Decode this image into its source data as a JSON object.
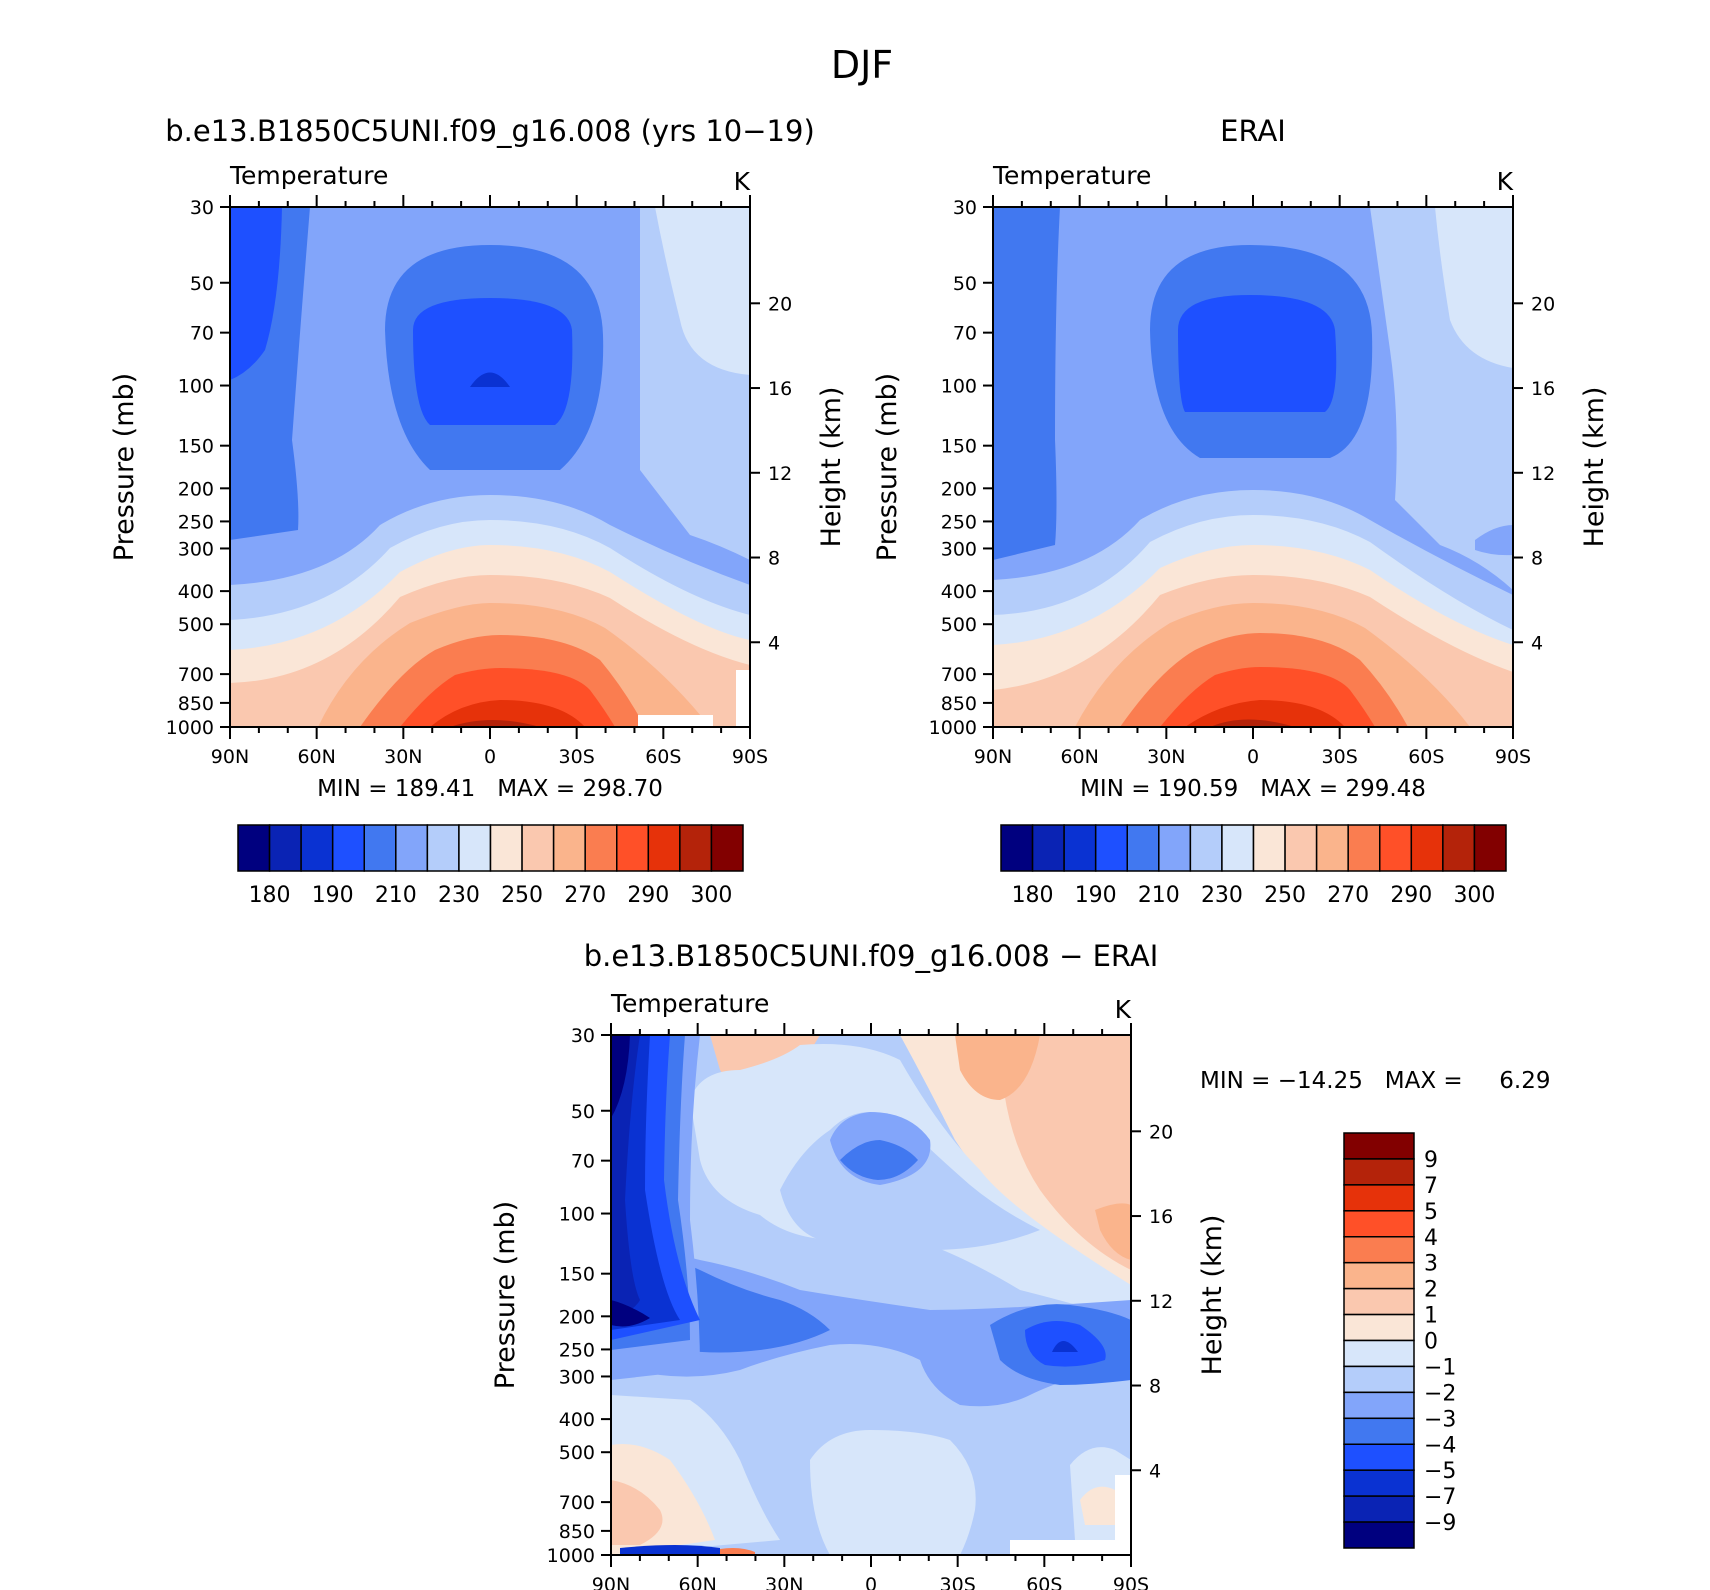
{
  "figure": {
    "title": "DJF"
  },
  "chart_data": [
    {
      "type": "contour",
      "title": "b.e13.B1850C5UNI.f09_g16.008 (yrs 10−19)",
      "left_label": "Temperature",
      "right_label": "K",
      "ylabel": "Pressure (mb)",
      "y2label": "Height (km)",
      "x_ticks": [
        "90N",
        "60N",
        "30N",
        "0",
        "30S",
        "60S",
        "90S"
      ],
      "y_ticks": [
        30,
        50,
        70,
        100,
        150,
        200,
        250,
        300,
        400,
        500,
        700,
        850,
        1000
      ],
      "y2_ticks": [
        20,
        16,
        12,
        8,
        4
      ],
      "y2_scale": "km",
      "y_scale": "log-pressure",
      "stats": "MIN = 189.41   MAX = 298.70",
      "colorbar": {
        "orientation": "horizontal",
        "colors": [
          "#00007f",
          "#0a23b4",
          "#0a32d2",
          "#1e50ff",
          "#4178f0",
          "#82a5fa",
          "#b4cdfa",
          "#d7e6fa",
          "#fae6d7",
          "#fac8af",
          "#fab48c",
          "#fa7d50",
          "#ff5028",
          "#e6320a",
          "#b4230a",
          "#820000"
        ],
        "labels": [
          "180",
          "190",
          "210",
          "230",
          "250",
          "270",
          "290",
          "300"
        ]
      }
    },
    {
      "type": "contour",
      "title": "ERAI",
      "left_label": "Temperature",
      "right_label": "K",
      "ylabel": "Pressure (mb)",
      "y2label": "Height (km)",
      "x_ticks": [
        "90N",
        "60N",
        "30N",
        "0",
        "30S",
        "60S",
        "90S"
      ],
      "y_ticks": [
        30,
        50,
        70,
        100,
        150,
        200,
        250,
        300,
        400,
        500,
        700,
        850,
        1000
      ],
      "y2_ticks": [
        20,
        16,
        12,
        8,
        4
      ],
      "y2_scale": "km",
      "y_scale": "log-pressure",
      "stats": "MIN = 190.59   MAX = 299.48",
      "colorbar": {
        "orientation": "horizontal",
        "colors": [
          "#00007f",
          "#0a23b4",
          "#0a32d2",
          "#1e50ff",
          "#4178f0",
          "#82a5fa",
          "#b4cdfa",
          "#d7e6fa",
          "#fae6d7",
          "#fac8af",
          "#fab48c",
          "#fa7d50",
          "#ff5028",
          "#e6320a",
          "#b4230a",
          "#820000"
        ],
        "labels": [
          "180",
          "190",
          "210",
          "230",
          "250",
          "270",
          "290",
          "300"
        ]
      }
    },
    {
      "type": "contour",
      "title": "b.e13.B1850C5UNI.f09_g16.008 − ERAI",
      "left_label": "Temperature",
      "right_label": "K",
      "ylabel": "Pressure (mb)",
      "y2label": "Height (km)",
      "x_ticks": [
        "90N",
        "60N",
        "30N",
        "0",
        "30S",
        "60S",
        "90S"
      ],
      "y_ticks": [
        30,
        50,
        70,
        100,
        150,
        200,
        250,
        300,
        400,
        500,
        700,
        850,
        1000
      ],
      "y2_ticks": [
        20,
        16,
        12,
        8,
        4
      ],
      "y2_scale": "km",
      "y_scale": "log-pressure",
      "stats": "MIN = −14.25   MAX =     6.29",
      "colorbar": {
        "orientation": "vertical",
        "colors": [
          "#820000",
          "#b4230a",
          "#e6320a",
          "#ff5028",
          "#fa7d50",
          "#fab48c",
          "#fac8af",
          "#fae6d7",
          "#d7e6fa",
          "#b4cdfa",
          "#82a5fa",
          "#4178f0",
          "#1e50ff",
          "#0a32d2",
          "#0a23b4",
          "#00007f"
        ],
        "labels": [
          "9",
          "7",
          "5",
          "4",
          "3",
          "2",
          "1",
          "0",
          "−1",
          "−2",
          "−3",
          "−4",
          "−5",
          "−7",
          "−9"
        ]
      }
    }
  ]
}
